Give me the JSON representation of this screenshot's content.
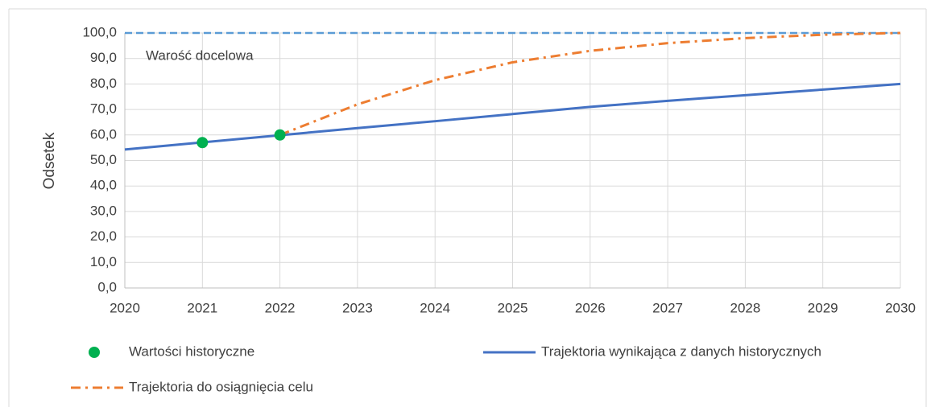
{
  "chart_data": {
    "type": "line",
    "y_label": "Odsetek",
    "x": [
      2020,
      2021,
      2022,
      2023,
      2024,
      2025,
      2026,
      2027,
      2028,
      2029,
      2030
    ],
    "xlim": [
      2020,
      2030
    ],
    "xticks": [
      2020,
      2021,
      2022,
      2023,
      2024,
      2025,
      2026,
      2027,
      2028,
      2029,
      2030
    ],
    "ylim": [
      0,
      100
    ],
    "yticks": [
      {
        "value": 0,
        "label": "0,0"
      },
      {
        "value": 10,
        "label": "10,0"
      },
      {
        "value": 20,
        "label": "20,0"
      },
      {
        "value": 30,
        "label": "30,0"
      },
      {
        "value": 40,
        "label": "40,0"
      },
      {
        "value": 50,
        "label": "50,0"
      },
      {
        "value": 60,
        "label": "60,0"
      },
      {
        "value": 70,
        "label": "70,0"
      },
      {
        "value": 80,
        "label": "80,0"
      },
      {
        "value": 90,
        "label": "90,0"
      },
      {
        "value": 100,
        "label": "100,0"
      }
    ],
    "grid": true,
    "target": {
      "value": 100,
      "label": "Warość docelowa",
      "color": "#5b9bd5"
    },
    "series": [
      {
        "name": "Wartości historyczne",
        "kind": "scatter",
        "color": "#00b050",
        "values": [
          null,
          57,
          60,
          null,
          null,
          null,
          null,
          null,
          null,
          null,
          null
        ]
      },
      {
        "name": "Trajektoria wynikająca z danych historycznych",
        "kind": "line",
        "style": "solid",
        "color": "#4472c4",
        "values": [
          54.3,
          57.1,
          59.9,
          62.7,
          65.4,
          68.2,
          71.0,
          73.4,
          75.6,
          77.8,
          80.0
        ]
      },
      {
        "name": "Trajektoria do osiągnięcia celu",
        "kind": "line",
        "style": "dashdot",
        "color": "#ed7d31",
        "values": [
          null,
          null,
          60,
          72,
          81.5,
          88.5,
          93,
          96,
          98,
          99.3,
          100
        ]
      }
    ]
  }
}
